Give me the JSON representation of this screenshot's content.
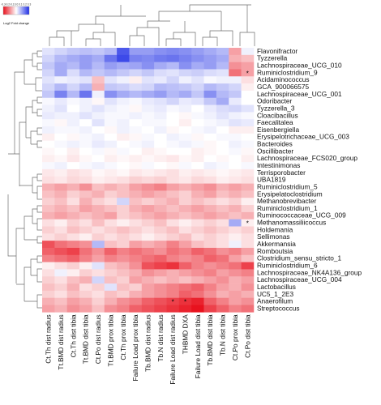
{
  "chart_data": {
    "type": "heatmap",
    "title": "",
    "legend": {
      "title": "Log2 Fold change",
      "ticks": [
        "-0.3",
        "-0.2",
        "-0.1",
        "0.0",
        "0.1",
        "0.2",
        "0.3"
      ],
      "min": -0.3,
      "max": 0.3,
      "colors": {
        "low": "#e8121e",
        "mid": "#ffffff",
        "high": "#1f2ee6"
      },
      "placement": "top-left"
    },
    "columns": [
      "Ct.Th dist radius",
      "Tt.BMD dist radius",
      "Ct.Th dist tibia",
      "Tt.BMD dist tibia",
      "Ct.Po dist radius",
      "Tt.BMD prox tibia",
      "Ct.Th prox tibia",
      "Failure Load prox tibia",
      "Tb.BMD dist radius",
      "Tb.N dist radius",
      "Failure Load dist radius",
      "THBMD DXA",
      "Failure Load dist tibia",
      "Tb.BMD dist tibia",
      "Tb.N dist tibia",
      "Ct.Po prox tibia",
      "Ct.Po dist tibia"
    ],
    "rows": [
      "Flavonifractor",
      "Tyzzerella",
      "Lachnospiraceae_UCG_010",
      "Ruminiclostridium_9",
      "Acidaminococcus",
      "GCA_900066575",
      "Lachnospiraceae_UCG_001",
      "Odoribacter",
      "Tyzzerella_3",
      "Cloacibacillus",
      "Faecalitalea",
      "Eisenbergiella",
      "Erysipelotrichaceae_UCG_003",
      "Bacteroides",
      "Oscillibacter",
      "Lachnospiraceae_FCS020_group",
      "Intestinimonas",
      "Terrisporobacter",
      "UBA1819",
      "Ruminiclostridium_5",
      "Erysipelatoclostridium",
      "Methanobrevibacter",
      "Ruminiclostridium_1",
      "Ruminococcaceae_UCG_009",
      "Methanomassiliicoccus",
      "Holdemania",
      "Sellimonas",
      "Akkermansia",
      "Romboutsia",
      "Clostridium_sensu_stricto_1",
      "Ruminiclostridium_6",
      "Lachnospiraceae_NK4A136_group",
      "Lachnospiraceae_UCG_004",
      "Lactobacillus",
      "UC5_1_2E3",
      "Anaerofilum",
      "Streptococcus"
    ],
    "values": [
      [
        0.04,
        0.06,
        0.08,
        0.09,
        0.08,
        0.1,
        0.24,
        0.14,
        0.14,
        0.16,
        0.17,
        0.16,
        0.14,
        0.12,
        0.1,
        -0.12,
        0.02
      ],
      [
        0.06,
        0.1,
        0.12,
        0.14,
        0.12,
        0.2,
        0.26,
        0.18,
        0.17,
        0.19,
        0.2,
        0.18,
        0.16,
        0.14,
        0.12,
        -0.1,
        -0.08
      ],
      [
        0.08,
        0.12,
        0.1,
        0.14,
        0.1,
        0.14,
        0.12,
        0.13,
        0.16,
        0.12,
        0.1,
        0.16,
        0.12,
        0.14,
        0.1,
        -0.14,
        -0.12
      ],
      [
        0.06,
        0.12,
        0.05,
        0.1,
        0.08,
        0.1,
        0.08,
        0.06,
        0.08,
        0.05,
        0.04,
        0.06,
        0.07,
        0.05,
        0.04,
        -0.18,
        -0.12
      ],
      [
        0.04,
        0.02,
        0.03,
        0.04,
        -0.08,
        0.04,
        0.02,
        -0.02,
        0.04,
        0.03,
        0.06,
        0.02,
        0.04,
        0.01,
        0.02,
        0.02,
        -0.04
      ],
      [
        0.06,
        0.1,
        0.06,
        0.1,
        -0.1,
        0.08,
        0.07,
        0.05,
        0.06,
        0.1,
        0.09,
        0.08,
        0.06,
        0.1,
        0.08,
        0.06,
        -0.02
      ],
      [
        0.08,
        0.18,
        0.1,
        0.2,
        0.02,
        0.16,
        0.12,
        0.1,
        0.12,
        0.14,
        0.1,
        0.12,
        0.08,
        0.16,
        0.1,
        0.08,
        0.0
      ],
      [
        0.01,
        0.03,
        0.01,
        0.02,
        -0.01,
        0.04,
        0.02,
        0.01,
        0.03,
        0.04,
        0.06,
        0.03,
        0.04,
        0.08,
        0.12,
        0.03,
        0.0
      ],
      [
        0.02,
        0.04,
        0.0,
        0.02,
        0.04,
        0.02,
        0.01,
        -0.01,
        0.02,
        0.03,
        0.01,
        0.02,
        0.0,
        0.03,
        0.05,
        0.06,
        0.04
      ],
      [
        0.03,
        0.02,
        0.02,
        0.04,
        0.02,
        0.01,
        0.01,
        0.02,
        0.01,
        0.02,
        0.0,
        -0.01,
        0.01,
        0.02,
        0.04,
        0.02,
        0.01
      ],
      [
        0.01,
        -0.01,
        0.02,
        0.0,
        0.04,
        0.01,
        0.02,
        0.0,
        0.01,
        0.01,
        0.0,
        -0.02,
        0.0,
        0.01,
        0.02,
        0.04,
        0.03
      ],
      [
        0.02,
        0.01,
        0.01,
        0.02,
        0.0,
        -0.01,
        0.02,
        0.01,
        0.0,
        0.02,
        -0.01,
        0.0,
        0.01,
        0.02,
        0.0,
        -0.02,
        -0.02
      ],
      [
        -0.02,
        0.0,
        -0.01,
        0.01,
        0.02,
        0.0,
        -0.02,
        -0.01,
        0.01,
        0.0,
        0.02,
        0.01,
        -0.01,
        0.0,
        0.01,
        0.01,
        0.0
      ],
      [
        0.0,
        0.01,
        0.02,
        0.01,
        0.03,
        0.02,
        0.0,
        0.01,
        0.02,
        0.0,
        0.01,
        0.02,
        0.01,
        -0.01,
        0.0,
        0.02,
        0.01
      ],
      [
        -0.01,
        0.0,
        -0.02,
        0.0,
        0.01,
        -0.01,
        0.01,
        0.0,
        -0.02,
        -0.01,
        0.0,
        0.0,
        -0.02,
        -0.01,
        0.0,
        0.01,
        -0.01
      ],
      [
        -0.02,
        -0.01,
        -0.03,
        -0.01,
        0.0,
        -0.02,
        -0.01,
        -0.02,
        -0.01,
        -0.02,
        -0.03,
        -0.01,
        -0.02,
        0.0,
        -0.01,
        0.0,
        -0.02
      ],
      [
        0.01,
        0.02,
        0.0,
        0.01,
        0.02,
        0.01,
        0.0,
        -0.01,
        0.01,
        0.0,
        -0.01,
        0.01,
        0.0,
        0.02,
        0.01,
        0.0,
        0.01
      ],
      [
        -0.03,
        -0.02,
        -0.04,
        -0.03,
        -0.01,
        -0.02,
        -0.01,
        -0.03,
        -0.02,
        -0.03,
        -0.04,
        -0.02,
        -0.03,
        -0.02,
        -0.01,
        -0.02,
        -0.03
      ],
      [
        -0.04,
        -0.03,
        -0.05,
        -0.04,
        -0.02,
        -0.03,
        -0.04,
        -0.06,
        -0.05,
        -0.06,
        -0.04,
        -0.03,
        -0.05,
        -0.04,
        -0.02,
        -0.03,
        -0.04
      ],
      [
        -0.1,
        -0.12,
        -0.1,
        -0.14,
        -0.08,
        -0.1,
        -0.08,
        -0.12,
        -0.14,
        -0.16,
        -0.12,
        -0.1,
        -0.12,
        -0.14,
        -0.1,
        -0.12,
        -0.1
      ],
      [
        -0.08,
        -0.1,
        -0.06,
        -0.08,
        -0.1,
        -0.06,
        -0.08,
        -0.1,
        -0.12,
        -0.1,
        -0.08,
        -0.06,
        -0.1,
        -0.12,
        -0.08,
        -0.1,
        -0.08
      ],
      [
        -0.06,
        -0.08,
        -0.04,
        -0.1,
        -0.06,
        -0.04,
        0.06,
        -0.08,
        -0.06,
        -0.08,
        -0.1,
        -0.06,
        -0.08,
        -0.06,
        -0.04,
        -0.06,
        -0.02
      ],
      [
        -0.08,
        -0.1,
        -0.08,
        -0.12,
        -0.1,
        -0.08,
        -0.06,
        -0.1,
        -0.12,
        -0.1,
        -0.08,
        -0.1,
        -0.12,
        -0.1,
        -0.08,
        -0.1,
        -0.06
      ],
      [
        -0.1,
        -0.12,
        -0.1,
        -0.08,
        -0.1,
        -0.12,
        -0.06,
        -0.08,
        -0.1,
        -0.12,
        -0.1,
        -0.08,
        -0.1,
        -0.12,
        -0.1,
        -0.08,
        -0.1
      ],
      [
        -0.04,
        -0.02,
        -0.06,
        -0.04,
        -0.08,
        -0.04,
        -0.02,
        -0.04,
        -0.06,
        -0.08,
        -0.04,
        -0.02,
        -0.04,
        -0.06,
        -0.04,
        0.12,
        -0.02
      ],
      [
        -0.06,
        -0.04,
        -0.08,
        -0.06,
        -0.04,
        -0.06,
        -0.08,
        -0.06,
        -0.04,
        -0.06,
        -0.08,
        -0.04,
        -0.06,
        -0.08,
        -0.06,
        -0.04,
        -0.06
      ],
      [
        -0.04,
        -0.06,
        -0.04,
        -0.02,
        -0.06,
        -0.04,
        -0.06,
        -0.04,
        -0.02,
        -0.04,
        -0.06,
        -0.08,
        -0.04,
        -0.06,
        -0.04,
        -0.02,
        -0.04
      ],
      [
        -0.22,
        -0.18,
        -0.16,
        -0.14,
        0.1,
        -0.08,
        -0.06,
        -0.12,
        -0.1,
        -0.12,
        -0.16,
        -0.12,
        -0.08,
        -0.06,
        -0.04,
        0.02,
        -0.04
      ],
      [
        -0.2,
        -0.22,
        -0.24,
        -0.18,
        -0.14,
        -0.2,
        -0.16,
        -0.18,
        -0.16,
        -0.14,
        -0.18,
        -0.16,
        -0.2,
        -0.18,
        -0.14,
        -0.16,
        -0.12
      ],
      [
        -0.16,
        -0.18,
        -0.2,
        -0.16,
        -0.12,
        -0.16,
        -0.14,
        -0.16,
        -0.18,
        -0.2,
        -0.16,
        -0.14,
        -0.16,
        -0.2,
        -0.18,
        -0.12,
        -0.08
      ],
      [
        -0.02,
        -0.04,
        -0.06,
        -0.02,
        0.04,
        -0.08,
        -0.1,
        -0.14,
        -0.22,
        -0.24,
        -0.26,
        -0.2,
        -0.16,
        -0.14,
        -0.16,
        -0.18,
        -0.24
      ],
      [
        -0.04,
        0.02,
        -0.02,
        -0.06,
        -0.04,
        -0.06,
        -0.08,
        -0.1,
        -0.14,
        -0.12,
        -0.1,
        -0.12,
        -0.14,
        -0.16,
        -0.12,
        -0.14,
        -0.16
      ],
      [
        -0.06,
        -0.04,
        -0.08,
        -0.1,
        0.06,
        -0.08,
        -0.06,
        -0.12,
        -0.1,
        -0.08,
        -0.1,
        -0.08,
        -0.1,
        -0.12,
        -0.14,
        -0.1,
        -0.12
      ],
      [
        -0.08,
        -0.06,
        -0.1,
        -0.04,
        -0.06,
        0.04,
        -0.08,
        -0.06,
        -0.12,
        -0.14,
        -0.16,
        -0.18,
        -0.2,
        -0.16,
        -0.12,
        -0.1,
        -0.14
      ],
      [
        -0.06,
        -0.04,
        -0.08,
        -0.06,
        -0.04,
        -0.08,
        -0.06,
        -0.1,
        -0.12,
        -0.14,
        -0.16,
        -0.2,
        -0.18,
        -0.14,
        -0.1,
        -0.12,
        -0.1
      ],
      [
        -0.1,
        -0.08,
        -0.12,
        -0.1,
        -0.06,
        -0.1,
        -0.14,
        -0.16,
        -0.2,
        -0.22,
        -0.24,
        -0.26,
        -0.28,
        -0.2,
        -0.16,
        -0.12,
        -0.14
      ],
      [
        -0.12,
        -0.1,
        -0.14,
        -0.12,
        -0.08,
        -0.14,
        -0.16,
        -0.2,
        -0.22,
        -0.24,
        -0.26,
        -0.28,
        -0.3,
        -0.24,
        -0.2,
        -0.16,
        -0.18
      ]
    ],
    "significant_marks": [
      {
        "row": "Ruminiclostridium_9",
        "column": "Ct.Po dist tibia",
        "mark": "*"
      },
      {
        "row": "Methanomassiliicoccus",
        "column": "Ct.Po dist tibia",
        "mark": "*"
      },
      {
        "row": "Anaerofilum",
        "column": "Failure Load dist radius",
        "mark": "*"
      },
      {
        "row": "Anaerofilum",
        "column": "THBMD DXA",
        "mark": "*"
      }
    ],
    "xlabel": "",
    "ylabel": ""
  }
}
